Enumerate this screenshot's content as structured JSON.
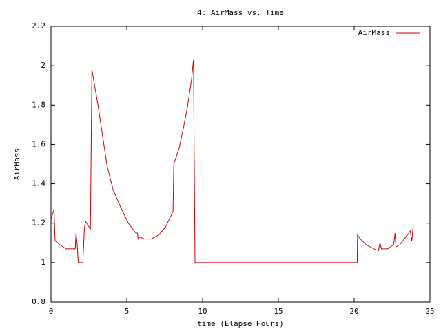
{
  "chart_data": {
    "type": "line",
    "title": "4: AirMass vs. Time",
    "x_label": "time (Elapse Hours)",
    "y_label": "AirMass",
    "x": [
      0,
      0.2,
      0.27,
      0.6,
      1.0,
      1.6,
      1.65,
      1.72,
      1.8,
      2.1,
      2.2,
      2.27,
      2.6,
      2.7,
      3.1,
      3.45,
      3.7,
      4.1,
      4.6,
      5.1,
      5.6,
      5.7,
      5.75,
      5.85,
      6.2,
      6.6,
      7.1,
      7.55,
      8.05,
      8.1,
      8.45,
      8.7,
      9.0,
      9.27,
      9.4,
      9.5,
      20.2,
      20.22,
      20.4,
      20.8,
      21.3,
      21.6,
      21.7,
      21.8,
      22.2,
      22.6,
      22.7,
      22.75,
      23.0,
      23.4,
      23.7,
      23.8,
      23.9
    ],
    "series": [
      {
        "name": "AirMass",
        "color": "#cc0000",
        "values": [
          1.22,
          1.27,
          1.11,
          1.09,
          1.07,
          1.07,
          1.15,
          1.1,
          1.0,
          1.0,
          1.17,
          1.21,
          1.17,
          1.98,
          1.8,
          1.62,
          1.49,
          1.37,
          1.28,
          1.2,
          1.15,
          1.15,
          1.12,
          1.13,
          1.12,
          1.12,
          1.14,
          1.18,
          1.26,
          1.5,
          1.58,
          1.67,
          1.79,
          1.93,
          2.03,
          1.0,
          1.0,
          1.14,
          1.12,
          1.09,
          1.07,
          1.06,
          1.1,
          1.07,
          1.07,
          1.09,
          1.15,
          1.08,
          1.09,
          1.13,
          1.16,
          1.11,
          1.19
        ]
      }
    ],
    "xlim": [
      0,
      25
    ],
    "xticks": [
      0,
      5,
      10,
      15,
      20,
      25
    ],
    "ylim": [
      0.8,
      2.2
    ],
    "yticks": [
      0.8,
      1,
      1.2,
      1.4,
      1.6,
      1.8,
      2,
      2.2
    ],
    "grid": false,
    "legend": "top-right"
  }
}
